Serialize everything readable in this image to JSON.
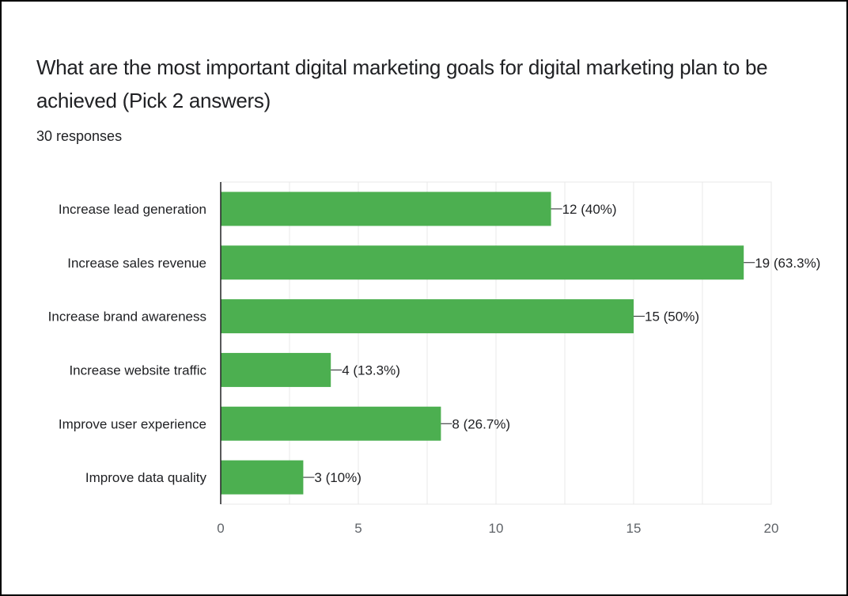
{
  "header": {
    "title": "What are the most important digital marketing goals for digital marketing plan to be achieved (Pick 2 answers)",
    "subtitle": "30 responses"
  },
  "colors": {
    "bar": "#4CAF50",
    "grid": "#e8e8e8",
    "axis": "#202124"
  },
  "chart_data": {
    "type": "bar",
    "orientation": "horizontal",
    "title": "What are the most important digital marketing goals for digital marketing plan to be achieved (Pick 2 answers)",
    "subtitle": "30 responses",
    "categories": [
      "Increase lead generation",
      "Increase sales revenue",
      "Increase brand awareness",
      "Increase website traffic",
      "Improve user experience",
      "Improve data quality"
    ],
    "values": [
      12,
      19,
      15,
      4,
      8,
      3
    ],
    "data_labels": [
      "12 (40%)",
      "19 (63.3%)",
      "15 (50%)",
      "4 (13.3%)",
      "8 (26.7%)",
      "3 (10%)"
    ],
    "xlim": [
      0,
      20
    ],
    "xticks": [
      0,
      5,
      10,
      15,
      20
    ],
    "grid": true,
    "legend": "none"
  }
}
